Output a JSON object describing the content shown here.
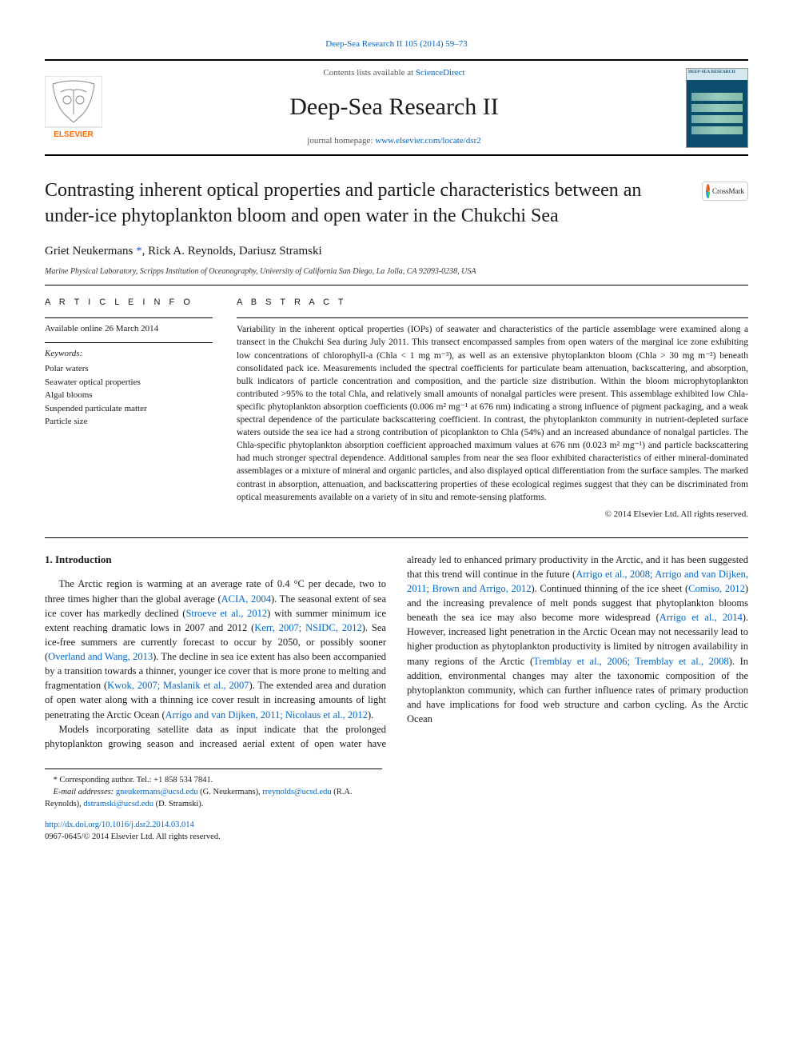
{
  "top_link": {
    "journal_ref": "Deep-Sea Research II 105 (2014) 59–73"
  },
  "header": {
    "contents_prefix": "Contents lists available at ",
    "contents_link": "ScienceDirect",
    "journal_name": "Deep-Sea Research II",
    "homepage_prefix": "journal homepage: ",
    "homepage_link": "www.elsevier.com/locate/dsr2",
    "cover_title": "DEEP-SEA RESEARCH",
    "cover_part": "PART II",
    "elsevier_label": "ELSEVIER"
  },
  "crossmark": {
    "label": "CrossMark"
  },
  "article": {
    "title": "Contrasting inherent optical properties and particle characteristics between an under-ice phytoplankton bloom and open water in the Chukchi Sea",
    "authors_html": "Griet Neukermans <a href=\"#\">*</a>, Rick A. Reynolds, Dariusz Stramski",
    "affiliation": "Marine Physical Laboratory, Scripps Institution of Oceanography, University of California San Diego, La Jolla, CA 92093-0238, USA"
  },
  "info": {
    "label": "A R T I C L E   I N F O",
    "available": "Available online 26 March 2014",
    "keywords_label": "Keywords:",
    "keywords": [
      "Polar waters",
      "Seawater optical properties",
      "Algal blooms",
      "Suspended particulate matter",
      "Particle size"
    ]
  },
  "abstract": {
    "label": "A B S T R A C T",
    "text": "Variability in the inherent optical properties (IOPs) of seawater and characteristics of the particle assemblage were examined along a transect in the Chukchi Sea during July 2011. This transect encompassed samples from open waters of the marginal ice zone exhibiting low concentrations of chlorophyll-a (Chla < 1 mg m⁻³), as well as an extensive phytoplankton bloom (Chla > 30 mg m⁻³) beneath consolidated pack ice. Measurements included the spectral coefficients for particulate beam attenuation, backscattering, and absorption, bulk indicators of particle concentration and composition, and the particle size distribution. Within the bloom microphytoplankton contributed >95% to the total Chla, and relatively small amounts of nonalgal particles were present. This assemblage exhibited low Chla-specific phytoplankton absorption coefficients (0.006 m² mg⁻¹ at 676 nm) indicating a strong influence of pigment packaging, and a weak spectral dependence of the particulate backscattering coefficient. In contrast, the phytoplankton community in nutrient-depleted surface waters outside the sea ice had a strong contribution of picoplankton to Chla (54%) and an increased abundance of nonalgal particles. The Chla-specific phytoplankton absorption coefficient approached maximum values at 676 nm (0.023 m² mg⁻¹) and particle backscattering had much stronger spectral dependence. Additional samples from near the sea floor exhibited characteristics of either mineral-dominated assemblages or a mixture of mineral and organic particles, and also displayed optical differentiation from the surface samples. The marked contrast in absorption, attenuation, and backscattering properties of these ecological regimes suggest that they can be discriminated from optical measurements available on a variety of in situ and remote-sensing platforms.",
    "copyright": "© 2014 Elsevier Ltd. All rights reserved."
  },
  "body": {
    "section_number": "1.",
    "section_title": "Introduction",
    "para1_html": "The Arctic region is warming at an average rate of 0.4 °C per decade, two to three times higher than the global average (<a href=\"#\">ACIA, 2004</a>). The seasonal extent of sea ice cover has markedly declined (<a href=\"#\">Stroeve et al., 2012</a>) with summer minimum ice extent reaching dramatic lows in 2007 and 2012 (<a href=\"#\">Kerr, 2007; NSIDC, 2012</a>). Sea ice-free summers are currently forecast to occur by 2050, or possibly sooner (<a href=\"#\">Overland and Wang, 2013</a>). The decline in sea ice extent has also been accompanied by a transition towards a thinner, younger ice cover that is more prone to melting and fragmentation (<a href=\"#\">Kwok, 2007; Maslanik et al., 2007</a>). The extended area and duration of open water along with a thinning ice cover result in increasing amounts of light penetrating the Arctic Ocean (<a href=\"#\">Arrigo and van Dijken, 2011; Nicolaus et al., 2012</a>).",
    "para2_html": "Models incorporating satellite data as input indicate that the prolonged phytoplankton growing season and increased aerial extent of open water have already led to enhanced primary productivity in the Arctic, and it has been suggested that this trend will continue in the future (<a href=\"#\">Arrigo et al., 2008; Arrigo and van Dijken, 2011; Brown and Arrigo, 2012</a>). Continued thinning of the ice sheet (<a href=\"#\">Comiso, 2012</a>) and the increasing prevalence of melt ponds suggest that phytoplankton blooms beneath the sea ice may also become more widespread (<a href=\"#\">Arrigo et al., 2014</a>). However, increased light penetration in the Arctic Ocean may not necessarily lead to higher production as phytoplankton productivity is limited by nitrogen availability in many regions of the Arctic (<a href=\"#\">Tremblay et al., 2006; Tremblay et al., 2008</a>). In addition, environmental changes may alter the taxonomic composition of the phytoplankton community, which can further influence rates of primary production and have implications for food web structure and carbon cycling. As the Arctic Ocean"
  },
  "footnotes": {
    "corresponding": "* Corresponding author. Tel.: +1 858 534 7841.",
    "email_label": "E-mail addresses: ",
    "emails_html": "<a href=\"#\">gneukermans@ucsd.edu</a> (G. Neukermans), <a href=\"#\">rreynolds@ucsd.edu</a> (R.A. Reynolds), <a href=\"#\">dstramski@ucsd.edu</a> (D. Stramski)."
  },
  "bottom": {
    "doi": "http://dx.doi.org/10.1016/j.dsr2.2014.03.014",
    "issn_line": "0967-0645/© 2014 Elsevier Ltd. All rights reserved."
  },
  "colors": {
    "link": "#0066cc",
    "text": "#1a1a1a",
    "cover_bg": "#0a4d6d",
    "elsevier_orange": "#ff6b00"
  }
}
